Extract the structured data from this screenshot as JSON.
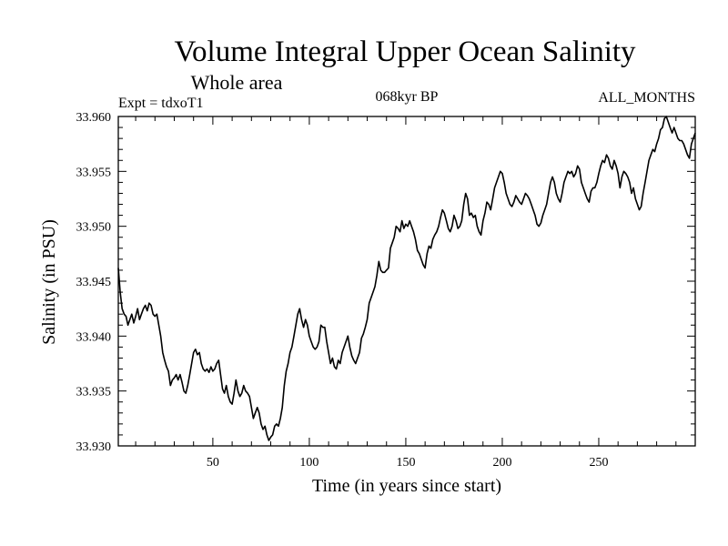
{
  "chart_data": {
    "type": "line",
    "title": "Volume Integral Upper Ocean Salinity",
    "subtitle": "Whole area",
    "experiment": "Expt = tdxoT1",
    "period": "068kyr BP",
    "months": "ALL_MONTHS",
    "xlabel": "Time (in years since start)",
    "ylabel": "Salinity (in PSU)",
    "xlim": [
      1,
      300
    ],
    "ylim": [
      33.93,
      33.96
    ],
    "xticks": [
      50,
      100,
      150,
      200,
      250
    ],
    "xtick_labels": [
      "50",
      "100",
      "150",
      "200",
      "250"
    ],
    "yticks": [
      33.93,
      33.935,
      33.94,
      33.945,
      33.95,
      33.955,
      33.96
    ],
    "ytick_labels": [
      "33.930",
      "33.935",
      "33.940",
      "33.945",
      "33.950",
      "33.955",
      "33.960"
    ],
    "series": [
      {
        "name": "salinity",
        "x": [
          1,
          2,
          3,
          4,
          5,
          6,
          7,
          8,
          9,
          10,
          11,
          12,
          13,
          14,
          15,
          16,
          17,
          18,
          19,
          20,
          21,
          22,
          23,
          24,
          25,
          26,
          27,
          28,
          29,
          30,
          31,
          32,
          33,
          34,
          35,
          36,
          37,
          38,
          39,
          40,
          41,
          42,
          43,
          44,
          45,
          46,
          47,
          48,
          49,
          50,
          51,
          52,
          53,
          54,
          55,
          56,
          57,
          58,
          59,
          60,
          61,
          62,
          63,
          64,
          65,
          66,
          67,
          68,
          69,
          70,
          71,
          72,
          73,
          74,
          75,
          76,
          77,
          78,
          79,
          80,
          81,
          82,
          83,
          84,
          85,
          86,
          87,
          88,
          89,
          90,
          91,
          92,
          93,
          94,
          95,
          96,
          97,
          98,
          99,
          100,
          101,
          102,
          103,
          104,
          105,
          106,
          107,
          108,
          109,
          110,
          111,
          112,
          113,
          114,
          115,
          116,
          117,
          118,
          119,
          120,
          121,
          122,
          123,
          124,
          125,
          126,
          127,
          128,
          129,
          130,
          131,
          132,
          133,
          134,
          135,
          136,
          137,
          138,
          139,
          140,
          141,
          142,
          143,
          144,
          145,
          146,
          147,
          148,
          149,
          150,
          151,
          152,
          153,
          154,
          155,
          156,
          157,
          158,
          159,
          160,
          161,
          162,
          163,
          164,
          165,
          166,
          167,
          168,
          169,
          170,
          171,
          172,
          173,
          174,
          175,
          176,
          177,
          178,
          179,
          180,
          181,
          182,
          183,
          184,
          185,
          186,
          187,
          188,
          189,
          190,
          191,
          192,
          193,
          194,
          195,
          196,
          197,
          198,
          199,
          200,
          201,
          202,
          203,
          204,
          205,
          206,
          207,
          208,
          209,
          210,
          211,
          212,
          213,
          214,
          215,
          216,
          217,
          218,
          219,
          220,
          221,
          222,
          223,
          224,
          225,
          226,
          227,
          228,
          229,
          230,
          231,
          232,
          233,
          234,
          235,
          236,
          237,
          238,
          239,
          240,
          241,
          242,
          243,
          244,
          245,
          246,
          247,
          248,
          249,
          250,
          251,
          252,
          253,
          254,
          255,
          256,
          257,
          258,
          259,
          260,
          261,
          262,
          263,
          264,
          265,
          266,
          267,
          268,
          269,
          270,
          271,
          272,
          273,
          274,
          275,
          276,
          277,
          278,
          279,
          280,
          281,
          282,
          283,
          284,
          285,
          286,
          287,
          288,
          289,
          290,
          291,
          292,
          293,
          294,
          295,
          296,
          297,
          298,
          299,
          300
        ],
        "y": [
          33.9462,
          33.944,
          33.9425,
          33.942,
          33.9418,
          33.941,
          33.9415,
          33.942,
          33.9412,
          33.9418,
          33.9425,
          33.9415,
          33.942,
          33.9425,
          33.9428,
          33.9423,
          33.943,
          33.9428,
          33.942,
          33.9418,
          33.942,
          33.941,
          33.94,
          33.9385,
          33.9378,
          33.9372,
          33.9368,
          33.9355,
          33.936,
          33.9362,
          33.9365,
          33.936,
          33.9365,
          33.9358,
          33.935,
          33.9348,
          33.9355,
          33.9365,
          33.9375,
          33.9385,
          33.9388,
          33.9383,
          33.9385,
          33.9375,
          33.937,
          33.9368,
          33.937,
          33.9367,
          33.9372,
          33.9368,
          33.937,
          33.9375,
          33.9378,
          33.9365,
          33.9352,
          33.9348,
          33.9355,
          33.9345,
          33.934,
          33.9338,
          33.9348,
          33.936,
          33.935,
          33.9345,
          33.9348,
          33.9355,
          33.935,
          33.9348,
          33.9345,
          33.9335,
          33.9325,
          33.933,
          33.9335,
          33.933,
          33.932,
          33.9315,
          33.9318,
          33.931,
          33.9305,
          33.9308,
          33.931,
          33.9318,
          33.932,
          33.9318,
          33.9325,
          33.9335,
          33.9355,
          33.9368,
          33.9375,
          33.9385,
          33.939,
          33.94,
          33.941,
          33.942,
          33.9425,
          33.9415,
          33.9408,
          33.9415,
          33.941,
          33.94,
          33.9395,
          33.939,
          33.9388,
          33.939,
          33.9395,
          33.941,
          33.9408,
          33.9408,
          33.9395,
          33.9385,
          33.9375,
          33.938,
          33.9372,
          33.937,
          33.9378,
          33.9375,
          33.9385,
          33.939,
          33.9395,
          33.94,
          33.939,
          33.9382,
          33.9378,
          33.9375,
          33.938,
          33.9385,
          33.9398,
          33.9402,
          33.9408,
          33.9415,
          33.943,
          33.9435,
          33.944,
          33.9445,
          33.9455,
          33.9468,
          33.946,
          33.9458,
          33.9458,
          33.946,
          33.9462,
          33.948,
          33.9485,
          33.949,
          33.95,
          33.9498,
          33.9495,
          33.9505,
          33.9498,
          33.9502,
          33.95,
          33.9505,
          33.95,
          33.9495,
          33.9488,
          33.9478,
          33.9475,
          33.947,
          33.9465,
          33.9462,
          33.9475,
          33.9482,
          33.948,
          33.9488,
          33.9492,
          33.9495,
          33.95,
          33.9508,
          33.9515,
          33.9512,
          33.9505,
          33.9498,
          33.9495,
          33.95,
          33.951,
          33.9505,
          33.9498,
          33.95,
          33.9505,
          33.952,
          33.953,
          33.9525,
          33.951,
          33.9512,
          33.9508,
          33.951,
          33.95,
          33.9495,
          33.9492,
          33.9505,
          33.9512,
          33.9522,
          33.952,
          33.9515,
          33.9525,
          33.9535,
          33.954,
          33.9545,
          33.955,
          33.9548,
          33.954,
          33.953,
          33.9525,
          33.952,
          33.9518,
          33.9522,
          33.9528,
          33.9525,
          33.9522,
          33.952,
          33.9525,
          33.953,
          33.9528,
          33.9525,
          33.952,
          33.9515,
          33.951,
          33.9502,
          33.95,
          33.9503,
          33.951,
          33.9515,
          33.952,
          33.953,
          33.954,
          33.9545,
          33.954,
          33.953,
          33.9525,
          33.9522,
          33.953,
          33.954,
          33.9545,
          33.955,
          33.9548,
          33.955,
          33.9545,
          33.9548,
          33.9555,
          33.9552,
          33.954,
          33.9535,
          33.953,
          33.9525,
          33.9522,
          33.9532,
          33.9535,
          33.9535,
          33.954,
          33.9548,
          33.9555,
          33.956,
          33.9558,
          33.9565,
          33.9562,
          33.9555,
          33.9552,
          33.956,
          33.9555,
          33.9548,
          33.9535,
          33.9545,
          33.955,
          33.9548,
          33.9545,
          33.954,
          33.953,
          33.9535,
          33.9525,
          33.952,
          33.9515,
          33.9518,
          33.953,
          33.954,
          33.955,
          33.956,
          33.9565,
          33.957,
          33.9568,
          33.9575,
          33.958,
          33.9588,
          33.959,
          33.9598,
          33.96,
          33.9595,
          33.959,
          33.9585,
          33.959,
          33.9585,
          33.958,
          33.9578,
          33.9578,
          33.9575,
          33.957,
          33.9565,
          33.9562,
          33.9575,
          33.958,
          33.9585
        ]
      }
    ]
  }
}
